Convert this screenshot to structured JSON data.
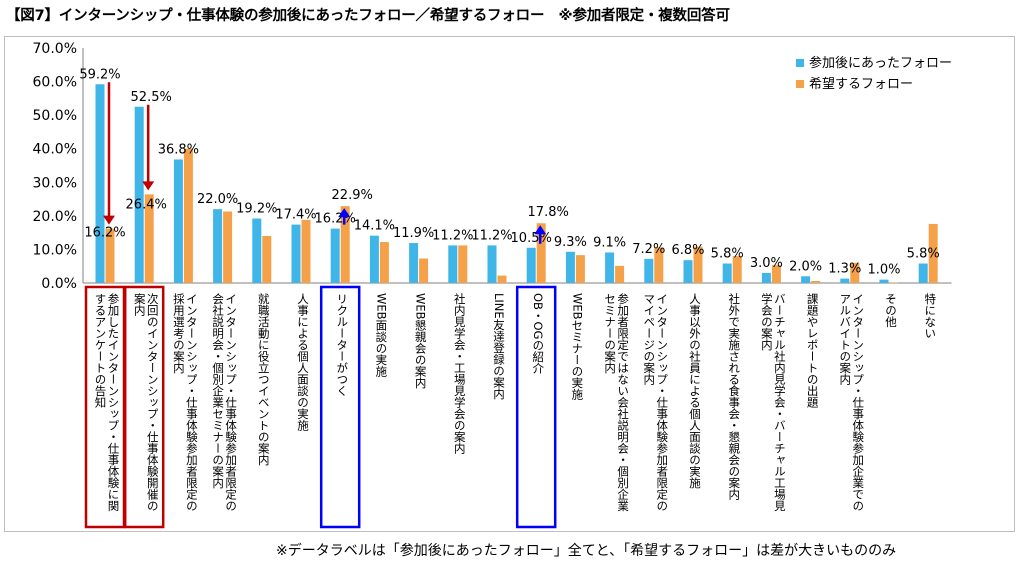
{
  "title": "【図7】インターンシップ・仕事体験の参加後にあったフォロー／希望するフォロー　※参加者限定・複数回答可",
  "footnote": "※データラベルは「参加後にあったフォロー」全てと、「希望するフォロー」は差が大きいもののみ",
  "chart_data": {
    "type": "bar",
    "ylim": [
      0,
      70
    ],
    "yticks": [
      "0.0%",
      "10.0%",
      "20.0%",
      "30.0%",
      "40.0%",
      "50.0%",
      "60.0%",
      "70.0%"
    ],
    "categories": [
      "参加したインターンシップ・仕事体験に関するアンケートの告知",
      "次回のインターンシップ・仕事体験開催の案内",
      "インターンシップ・仕事体験参加者限定の採用選考の案内",
      "インターンシップ・仕事体験参加者限定の会社説明会・個別企業セミナーの案内",
      "就職活動に役立つイベントの案内",
      "人事による個人面談の実施",
      "リクルーターがつく",
      "WEB面談の実施",
      "WEB懇親会の案内",
      "社内見学会・工場見学会の案内",
      "LINE友達登録の案内",
      "OB・OGの紹介",
      "WEBセミナーの実施",
      "参加者限定ではない会社説明会・個別企業セミナーの案内",
      "インターンシップ・仕事体験参加者限定のマイページの案内",
      "人事以外の社員による個人面談の実施",
      "社外で実施される食事会・懇親会の案内",
      "バーチャル社内見学会・バーチャル工場見学会の案内",
      "課題やレポートの出題",
      "インターンシップ・仕事体験参加企業でのアルバイトの案内",
      "その他",
      "特にない"
    ],
    "series": [
      {
        "name": "参加後にあったフォロー",
        "color": "#3fb5e8",
        "values": [
          59.2,
          52.5,
          36.8,
          22.0,
          19.2,
          17.4,
          16.2,
          14.1,
          11.9,
          11.2,
          11.2,
          10.5,
          9.3,
          9.1,
          7.2,
          6.8,
          5.8,
          3.0,
          2.0,
          1.3,
          1.0,
          5.8
        ],
        "labels": [
          "59.2%",
          "52.5%",
          "36.8%",
          "22.0%",
          "19.2%",
          "17.4%",
          "16.2%",
          "14.1%",
          "11.9%",
          "11.2%",
          "11.2%",
          "10.5%",
          "9.3%",
          "9.1%",
          "7.2%",
          "6.8%",
          "5.8%",
          "3.0%",
          "2.0%",
          "1.3%",
          "1.0%",
          "5.8%"
        ]
      },
      {
        "name": "希望するフォロー",
        "color": "#f5a14a",
        "values": [
          16.2,
          26.4,
          40.0,
          21.3,
          14.0,
          18.8,
          22.9,
          12.2,
          7.3,
          11.2,
          2.2,
          17.8,
          8.3,
          5.1,
          10.6,
          10.8,
          8.0,
          5.3,
          0.6,
          6.0,
          0.1,
          17.6
        ],
        "labels": [
          "16.2%",
          "26.4%",
          "",
          "",
          "",
          "",
          "22.9%",
          "",
          "",
          "",
          "",
          "17.8%",
          "",
          "",
          "",
          "",
          "",
          "",
          "",
          "",
          "",
          ""
        ]
      }
    ],
    "legend": "top-right",
    "highlights": [
      {
        "index": 0,
        "color": "#c00000",
        "arrow": "down"
      },
      {
        "index": 1,
        "color": "#c00000",
        "arrow": "down"
      },
      {
        "index": 6,
        "color": "#0000ff",
        "arrow": "up"
      },
      {
        "index": 11,
        "color": "#0000ff",
        "arrow": "up"
      }
    ]
  }
}
